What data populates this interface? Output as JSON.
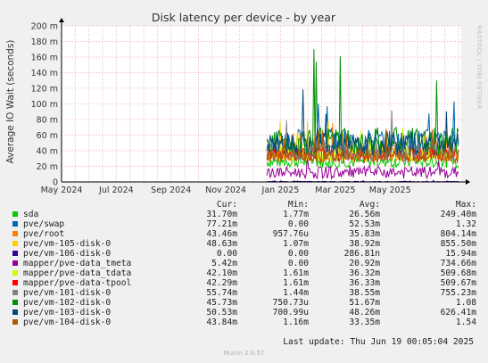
{
  "side_text": "RRDTOOL / TOBI OETIKER",
  "chart_data": {
    "type": "line",
    "title": "Disk latency per device - by year",
    "ylabel": "Average IO Wait (seconds)",
    "xlabel": "",
    "ylim": [
      0,
      200
    ],
    "y_ticks": [
      "0",
      "20 m",
      "40 m",
      "60 m",
      "80 m",
      "100 m",
      "120 m",
      "140 m",
      "160 m",
      "180 m",
      "200 m"
    ],
    "y_tick_values": [
      0,
      20,
      40,
      60,
      80,
      100,
      120,
      140,
      160,
      180,
      200
    ],
    "x_ticks": [
      "May 2024",
      "Jul 2024",
      "Sep 2024",
      "Nov 2024",
      "Jan 2025",
      "Mar 2025",
      "May 2025"
    ],
    "x_tick_months": [
      0,
      2,
      4,
      6,
      8,
      10,
      12
    ],
    "xlim_months": [
      0,
      14.6
    ],
    "data_start_month": 7.5,
    "grid": true,
    "series": [
      {
        "name": "sda",
        "color": "#00cc00",
        "base": 26,
        "amp": 8,
        "spike": 45
      },
      {
        "name": "pve/swap",
        "color": "#0066b3",
        "base": 52,
        "amp": 16,
        "spike": 80
      },
      {
        "name": "pve/root",
        "color": "#ff8000",
        "base": 36,
        "amp": 10,
        "spike": 40
      },
      {
        "name": "pve/vm-105-disk-0",
        "color": "#ffcc00",
        "base": 39,
        "amp": 12,
        "spike": 50
      },
      {
        "name": "pve/vm-106-disk-0",
        "color": "#330099",
        "base": 0.3,
        "amp": 0.5,
        "spike": 2
      },
      {
        "name": "mapper/pve-data_tmeta",
        "color": "#990099",
        "base": 12,
        "amp": 8,
        "spike": 15
      },
      {
        "name": "mapper/pve-data_tdata",
        "color": "#ccff00",
        "base": 36,
        "amp": 10,
        "spike": 45
      },
      {
        "name": "mapper/pve-data-tpool",
        "color": "#ff0000",
        "base": 36,
        "amp": 9,
        "spike": 45
      },
      {
        "name": "pve/vm-101-disk-0",
        "color": "#808080",
        "base": 38,
        "amp": 12,
        "spike": 60
      },
      {
        "name": "pve/vm-102-disk-0",
        "color": "#008f00",
        "base": 52,
        "amp": 18,
        "spike": 140
      },
      {
        "name": "pve/vm-103-disk-0",
        "color": "#00487d",
        "base": 48,
        "amp": 16,
        "spike": 80
      },
      {
        "name": "pve/vm-104-disk-0",
        "color": "#b35a00",
        "base": 33,
        "amp": 9,
        "spike": 40
      }
    ]
  },
  "legend": {
    "headers": {
      "cur": "Cur:",
      "min": "Min:",
      "avg": "Avg:",
      "max": "Max:"
    },
    "rows": [
      {
        "name": "sda",
        "color": "#00cc00",
        "cur": "31.70m",
        "min": "1.77m",
        "avg": "26.56m",
        "max": "249.40m"
      },
      {
        "name": "pve/swap",
        "color": "#0066b3",
        "cur": "77.21m",
        "min": "0.00",
        "avg": "52.53m",
        "max": "1.32"
      },
      {
        "name": "pve/root",
        "color": "#ff8000",
        "cur": "43.46m",
        "min": "957.76u",
        "avg": "35.83m",
        "max": "804.14m"
      },
      {
        "name": "pve/vm-105-disk-0",
        "color": "#ffcc00",
        "cur": "48.63m",
        "min": "1.07m",
        "avg": "38.92m",
        "max": "855.50m"
      },
      {
        "name": "pve/vm-106-disk-0",
        "color": "#330099",
        "cur": "0.00",
        "min": "0.00",
        "avg": "286.81n",
        "max": "15.94m"
      },
      {
        "name": "mapper/pve-data_tmeta",
        "color": "#990099",
        "cur": "5.42m",
        "min": "0.00",
        "avg": "20.92m",
        "max": "734.66m"
      },
      {
        "name": "mapper/pve-data_tdata",
        "color": "#ccff00",
        "cur": "42.10m",
        "min": "1.61m",
        "avg": "36.32m",
        "max": "509.68m"
      },
      {
        "name": "mapper/pve-data-tpool",
        "color": "#ff0000",
        "cur": "42.29m",
        "min": "1.61m",
        "avg": "36.33m",
        "max": "509.67m"
      },
      {
        "name": "pve/vm-101-disk-0",
        "color": "#808080",
        "cur": "55.74m",
        "min": "1.44m",
        "avg": "38.55m",
        "max": "755.23m"
      },
      {
        "name": "pve/vm-102-disk-0",
        "color": "#008f00",
        "cur": "45.73m",
        "min": "750.73u",
        "avg": "51.67m",
        "max": "1.08"
      },
      {
        "name": "pve/vm-103-disk-0",
        "color": "#00487d",
        "cur": "50.53m",
        "min": "700.99u",
        "avg": "48.26m",
        "max": "626.41m"
      },
      {
        "name": "pve/vm-104-disk-0",
        "color": "#b35a00",
        "cur": "43.84m",
        "min": "1.16m",
        "avg": "33.35m",
        "max": "1.54"
      }
    ]
  },
  "last_update": "Last update: Thu Jun 19 00:05:04 2025",
  "footer": "Munin 2.0.57"
}
